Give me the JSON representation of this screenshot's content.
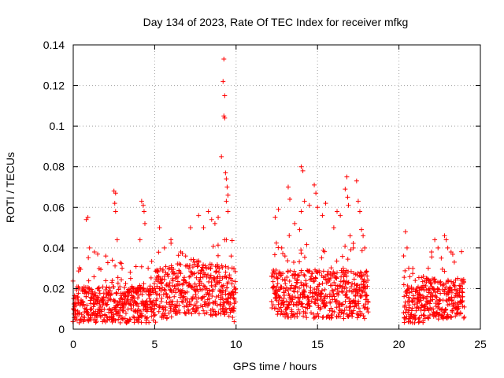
{
  "chart_data": {
    "type": "scatter",
    "title": "Day 134 of 2023, Rate Of TEC Index for receiver mfkg",
    "xlabel": "GPS time / hours",
    "ylabel": "ROTI / TECUs",
    "xlim": [
      0,
      25
    ],
    "ylim": [
      0,
      0.14
    ],
    "x_ticks": [
      "0",
      "5",
      "10",
      "15",
      "20",
      "25"
    ],
    "y_ticks": [
      "0",
      "0.02",
      "0.04",
      "0.06",
      "0.08",
      "0.1",
      "0.12",
      "0.14"
    ],
    "grid": true,
    "marker": "+",
    "color": "#ff0000",
    "coverage_segments_hours": [
      [
        0,
        10.0
      ],
      [
        12.2,
        18.1
      ],
      [
        20.3,
        24.0
      ]
    ],
    "points": [
      [
        0.8,
        0.054
      ],
      [
        0.9,
        0.055
      ],
      [
        1.0,
        0.04
      ],
      [
        1.3,
        0.038
      ],
      [
        1.5,
        0.037
      ],
      [
        2.0,
        0.036
      ],
      [
        2.4,
        0.034
      ],
      [
        2.5,
        0.068
      ],
      [
        2.6,
        0.067
      ],
      [
        2.55,
        0.062
      ],
      [
        2.6,
        0.058
      ],
      [
        2.7,
        0.044
      ],
      [
        3.0,
        0.03
      ],
      [
        3.5,
        0.028
      ],
      [
        4.1,
        0.044
      ],
      [
        4.2,
        0.063
      ],
      [
        4.3,
        0.061
      ],
      [
        4.35,
        0.058
      ],
      [
        4.4,
        0.052
      ],
      [
        4.6,
        0.03
      ],
      [
        5.3,
        0.05
      ],
      [
        5.6,
        0.04
      ],
      [
        6.0,
        0.044
      ],
      [
        6.6,
        0.038
      ],
      [
        6.9,
        0.036
      ],
      [
        7.2,
        0.05
      ],
      [
        7.7,
        0.056
      ],
      [
        8.0,
        0.05
      ],
      [
        8.3,
        0.058
      ],
      [
        8.5,
        0.054
      ],
      [
        8.7,
        0.052
      ],
      [
        8.9,
        0.055
      ],
      [
        9.1,
        0.085
      ],
      [
        9.2,
        0.122
      ],
      [
        9.25,
        0.133
      ],
      [
        9.3,
        0.115
      ],
      [
        9.25,
        0.105
      ],
      [
        9.3,
        0.104
      ],
      [
        9.35,
        0.077
      ],
      [
        9.4,
        0.074
      ],
      [
        9.45,
        0.07
      ],
      [
        9.5,
        0.066
      ],
      [
        9.4,
        0.063
      ],
      [
        9.5,
        0.058
      ],
      [
        9.3,
        0.044
      ],
      [
        9.4,
        0.044
      ],
      [
        9.7,
        0.036
      ],
      [
        12.4,
        0.055
      ],
      [
        12.6,
        0.059
      ],
      [
        12.8,
        0.04
      ],
      [
        13.0,
        0.036
      ],
      [
        13.2,
        0.07
      ],
      [
        13.3,
        0.064
      ],
      [
        13.6,
        0.052
      ],
      [
        13.9,
        0.049
      ],
      [
        14.0,
        0.08
      ],
      [
        14.1,
        0.078
      ],
      [
        14.2,
        0.063
      ],
      [
        14.0,
        0.058
      ],
      [
        14.5,
        0.061
      ],
      [
        14.8,
        0.071
      ],
      [
        14.9,
        0.067
      ],
      [
        15.0,
        0.06
      ],
      [
        15.3,
        0.056
      ],
      [
        15.5,
        0.062
      ],
      [
        16.0,
        0.05
      ],
      [
        16.2,
        0.058
      ],
      [
        16.4,
        0.056
      ],
      [
        16.7,
        0.069
      ],
      [
        16.8,
        0.075
      ],
      [
        16.85,
        0.065
      ],
      [
        16.9,
        0.061
      ],
      [
        17.0,
        0.046
      ],
      [
        17.2,
        0.04
      ],
      [
        17.4,
        0.073
      ],
      [
        17.5,
        0.063
      ],
      [
        17.6,
        0.058
      ],
      [
        17.7,
        0.049
      ],
      [
        17.8,
        0.046
      ],
      [
        17.9,
        0.04
      ],
      [
        20.4,
        0.048
      ],
      [
        20.5,
        0.04
      ],
      [
        20.6,
        0.03
      ],
      [
        21.0,
        0.024
      ],
      [
        21.5,
        0.026
      ],
      [
        21.8,
        0.03
      ],
      [
        22.0,
        0.038
      ],
      [
        22.2,
        0.044
      ],
      [
        22.4,
        0.04
      ],
      [
        22.6,
        0.035
      ],
      [
        22.8,
        0.046
      ],
      [
        22.9,
        0.044
      ],
      [
        23.0,
        0.04
      ],
      [
        23.2,
        0.038
      ],
      [
        23.4,
        0.033
      ],
      [
        23.6,
        0.025
      ],
      [
        23.9,
        0.02
      ]
    ]
  }
}
